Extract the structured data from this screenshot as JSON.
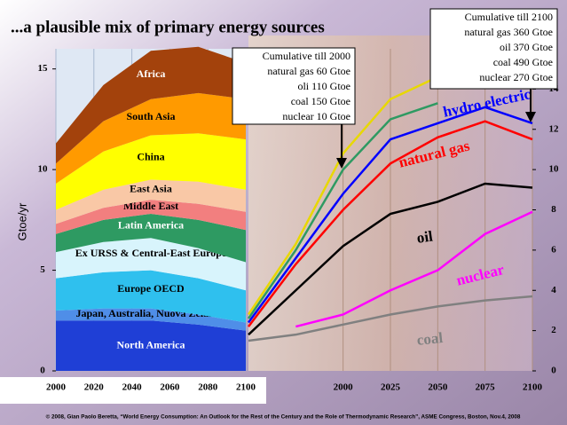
{
  "chart_data": [
    {
      "type": "stacked_area",
      "title": "...a plausible mix of primary energy sources",
      "ylabel": "Gtoe/yr",
      "x": [
        2000,
        2025,
        2050,
        2075,
        2100
      ],
      "xlim": [
        2000,
        2100
      ],
      "xticks": [
        2000,
        2020,
        2040,
        2060,
        2080,
        2100
      ],
      "ylim": [
        0,
        16
      ],
      "yticks": [
        0,
        5,
        10,
        15
      ],
      "series": [
        {
          "name": "North America",
          "color": "#1f3fd6",
          "values": [
            2.5,
            2.5,
            2.5,
            2.3,
            2.0
          ]
        },
        {
          "name": "Japan,  Australia, Nuova Zelanda",
          "color": "#4f8ee8",
          "values": [
            0.5,
            0.6,
            0.6,
            0.5,
            0.4
          ]
        },
        {
          "name": "Europe OECD",
          "color": "#2fc0ee",
          "values": [
            1.6,
            1.8,
            1.9,
            1.8,
            1.6
          ]
        },
        {
          "name": "Ex URSS & Central-East Europe",
          "color": "#d8f4fc",
          "values": [
            1.3,
            1.5,
            1.6,
            1.5,
            1.4
          ]
        },
        {
          "name": "Latin America",
          "color": "#2e9a62",
          "values": [
            0.9,
            1.1,
            1.2,
            1.4,
            1.6
          ]
        },
        {
          "name": "Middle East",
          "color": "#f27f7f",
          "values": [
            0.5,
            0.6,
            0.7,
            0.8,
            0.9
          ]
        },
        {
          "name": "East Asia",
          "color": "#f9c8a6",
          "values": [
            0.7,
            0.9,
            1.0,
            1.1,
            1.1
          ]
        },
        {
          "name": "China",
          "color": "#ffff00",
          "values": [
            1.3,
            1.9,
            2.2,
            2.4,
            2.5
          ]
        },
        {
          "name": "South Asia",
          "color": "#ff9a00",
          "values": [
            1.0,
            1.5,
            1.8,
            2.0,
            2.0
          ]
        },
        {
          "name": "Africa",
          "color": "#a3420c",
          "values": [
            1.0,
            1.8,
            2.4,
            2.3,
            1.8
          ]
        }
      ]
    },
    {
      "type": "line",
      "x": [
        1950,
        1975,
        2000,
        2025,
        2050,
        2075,
        2100
      ],
      "xlim": [
        1950,
        2100
      ],
      "xticks": [
        2000,
        2025,
        2050,
        2075,
        2100
      ],
      "ylim": [
        0,
        16
      ],
      "yticks": [
        0,
        2,
        4,
        6,
        8,
        10,
        12,
        14
      ],
      "series": [
        {
          "name": "coal",
          "color": "#808080",
          "values": [
            1.5,
            1.8,
            2.3,
            2.8,
            3.2,
            3.5,
            3.7
          ]
        },
        {
          "name": "nuclear",
          "color": "#ff00ff",
          "values": [
            null,
            2.2,
            2.8,
            4.0,
            5.0,
            6.8,
            7.9
          ]
        },
        {
          "name": "oil",
          "color": "#000000",
          "values": [
            1.8,
            4.0,
            6.2,
            7.8,
            8.4,
            9.3,
            9.1
          ]
        },
        {
          "name": "natural gas",
          "color": "#ff0000",
          "values": [
            2.2,
            5.3,
            8.0,
            10.3,
            11.6,
            12.4,
            11.5
          ]
        },
        {
          "name": "hydro electric",
          "color": "#0000ff",
          "values": [
            2.4,
            5.6,
            8.8,
            11.5,
            12.3,
            13.1,
            12.3
          ]
        },
        {
          "color": "#2e9a62",
          "values": [
            2.6,
            6.0,
            10.0,
            12.5,
            13.3,
            null,
            null
          ]
        },
        {
          "color": "#e8d800",
          "values": [
            2.8,
            6.3,
            10.8,
            13.5,
            14.6,
            null,
            null
          ]
        }
      ],
      "annotations": [
        {
          "title": "Cumulative till 2000",
          "lines": [
            "natural gas   60 Gtoe",
            "oli 110 Gtoe",
            "coal 150 Gtoe",
            "nuclear  10 Gtoe"
          ]
        },
        {
          "title": "Cumulative till 2100",
          "lines": [
            "natural gas 360 Gtoe",
            "oil 370 Gtoe",
            "coal 490 Gtoe",
            "nuclear 270 Gtoe"
          ]
        }
      ]
    }
  ],
  "credit": "© 2008, Gian Paolo Beretta, “World Energy Consumption: An Outlook for the Rest of the Century and the Role of Thermodynamic Research”, ASME Congress, Boston, Nov.4, 2008"
}
